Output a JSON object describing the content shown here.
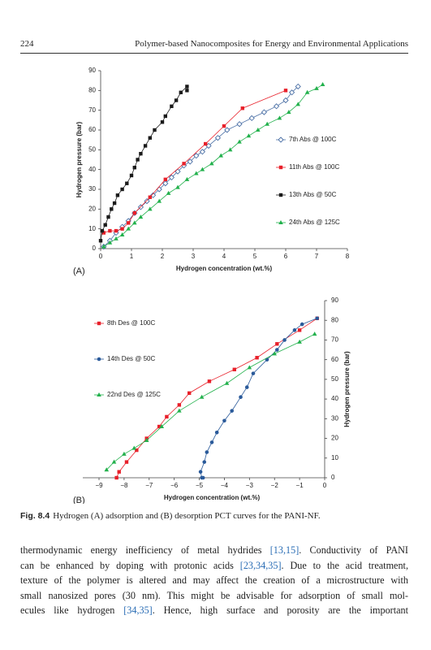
{
  "header": {
    "page_number": "224",
    "title": "Polymer-based Nanocomposites for Energy and Environmental Applications"
  },
  "chart_data": [
    {
      "type": "scatter",
      "lines": true,
      "panel_label": "(A)",
      "x_label": "Hydrogen concentration (wt.%)",
      "y_label": "Hydrogen pressure (bar)",
      "xlim": [
        0,
        8
      ],
      "ylim": [
        0,
        90
      ],
      "xticks": [
        0,
        1,
        2,
        3,
        4,
        5,
        6,
        7,
        8
      ],
      "yticks": [
        0,
        10,
        20,
        30,
        40,
        50,
        60,
        70,
        80,
        90
      ],
      "y_axis_side": "left",
      "legend_position": "center right",
      "series": [
        {
          "name": "7th Abs @ 100C",
          "color": "#4a6fa5",
          "marker": "diamond-open",
          "x": [
            0.1,
            0.3,
            0.5,
            0.7,
            0.9,
            1.1,
            1.3,
            1.5,
            1.7,
            1.9,
            2.1,
            2.3,
            2.5,
            2.7,
            2.9,
            3.1,
            3.3,
            3.5,
            3.8,
            4.1,
            4.5,
            4.9,
            5.3,
            5.7,
            6.0,
            6.2,
            6.4
          ],
          "values": [
            1,
            4,
            8,
            11,
            14,
            18,
            21,
            24,
            27,
            30,
            33,
            36,
            39,
            42,
            44,
            47,
            49,
            52,
            56,
            60,
            63,
            66,
            69,
            72,
            75,
            79,
            82
          ]
        },
        {
          "name": "11th Abs @ 100C",
          "color": "#e8202a",
          "marker": "square",
          "x": [
            0.1,
            0.3,
            0.5,
            0.7,
            0.9,
            1.1,
            1.6,
            2.1,
            2.7,
            3.4,
            4.0,
            4.6,
            6.0
          ],
          "values": [
            8,
            9,
            9,
            10,
            13,
            18,
            26,
            35,
            43,
            53,
            62,
            71,
            80
          ]
        },
        {
          "name": "13th Abs @ 50C",
          "color": "#1a1a1a",
          "marker": "square",
          "x": [
            0,
            0.05,
            0.15,
            0.25,
            0.35,
            0.45,
            0.55,
            0.7,
            0.85,
            1.0,
            1.1,
            1.2,
            1.3,
            1.45,
            1.6,
            1.75,
            2.0,
            2.1,
            2.3,
            2.45,
            2.6,
            2.8,
            2.8
          ],
          "values": [
            4,
            9,
            12,
            16,
            20,
            23,
            27,
            30,
            33,
            37,
            41,
            45,
            48,
            52,
            56,
            60,
            64,
            67,
            72,
            75,
            79,
            82,
            80
          ]
        },
        {
          "name": "24th Abs @ 125C",
          "color": "#22b14c",
          "marker": "triangle",
          "x": [
            0.1,
            0.3,
            0.5,
            0.7,
            0.9,
            1.1,
            1.3,
            1.6,
            1.9,
            2.2,
            2.5,
            2.8,
            3.1,
            3.3,
            3.6,
            3.9,
            4.2,
            4.5,
            4.8,
            5.1,
            5.4,
            5.8,
            6.1,
            6.4,
            6.7,
            7.0,
            7.2
          ],
          "values": [
            1,
            3,
            5,
            7,
            10,
            13,
            16,
            20,
            24,
            28,
            31,
            35,
            38,
            40,
            43,
            47,
            50,
            54,
            57,
            60,
            63,
            66,
            69,
            73,
            79,
            81,
            83
          ]
        }
      ]
    },
    {
      "type": "scatter",
      "lines": true,
      "panel_label": "(B)",
      "x_label": "Hydrogen concentration (wt.%)",
      "y_label": "Hydrogen pressure (bar)",
      "xlim": [
        -9,
        0
      ],
      "ylim": [
        0,
        90
      ],
      "xticks": [
        {
          "value": -9,
          "label": "−9"
        },
        {
          "value": -8,
          "label": "−8"
        },
        {
          "value": -7,
          "label": "−7"
        },
        {
          "value": -6,
          "label": "−6"
        },
        {
          "value": -5,
          "label": "−5"
        },
        {
          "value": -4,
          "label": "−4"
        },
        {
          "value": -3,
          "label": "−3"
        },
        {
          "value": -2,
          "label": "−2"
        },
        {
          "value": -1,
          "label": "−1"
        },
        0
      ],
      "yticks": [
        0,
        10,
        20,
        30,
        40,
        50,
        60,
        70,
        80,
        90
      ],
      "y_axis_side": "right",
      "legend_position": "upper left",
      "series": [
        {
          "name": "8th Des @ 100C",
          "color": "#e8202a",
          "marker": "square",
          "x": [
            -8.3,
            -8.2,
            -7.9,
            -7.5,
            -7.1,
            -6.6,
            -6.3,
            -5.8,
            -5.4,
            -4.6,
            -3.6,
            -2.7,
            -1.9,
            -1.0,
            -0.3
          ],
          "values": [
            0,
            3,
            8,
            14,
            20,
            26,
            31,
            37,
            43,
            49,
            55,
            61,
            68,
            75,
            81
          ]
        },
        {
          "name": "14th Des @ 50C",
          "color": "#2a5a9a",
          "marker": "circle",
          "x": [
            -4.85,
            -4.9,
            -4.95,
            -4.8,
            -4.7,
            -4.5,
            -4.3,
            -4.0,
            -3.7,
            -3.35,
            -3.1,
            -2.85,
            -2.3,
            -1.9,
            -1.6,
            -1.2,
            -0.9,
            -0.3
          ],
          "values": [
            0,
            0,
            3,
            8,
            13,
            18,
            23,
            29,
            34,
            41,
            46,
            53,
            60,
            65,
            70,
            75,
            78,
            81
          ]
        },
        {
          "name": "22nd Des @ 125C",
          "color": "#22b14c",
          "marker": "triangle",
          "x": [
            -8.7,
            -8.4,
            -8.0,
            -7.6,
            -7.1,
            -6.5,
            -5.8,
            -4.9,
            -3.9,
            -3.0,
            -2.0,
            -1.0,
            -0.4
          ],
          "values": [
            4,
            8,
            12,
            15,
            19,
            26,
            34,
            41,
            48,
            56,
            63,
            69,
            73
          ]
        }
      ]
    }
  ],
  "caption": {
    "label": "Fig. 8.4",
    "text": "Hydrogen (A) adsorption and (B) desorption PCT curves for the PANI-NF."
  },
  "body": {
    "lines": [
      [
        "thermodynamic energy inefficiency of metal hydrides ",
        {
          "ref": "[13,15]"
        },
        ". Conductivity of PANI"
      ],
      [
        "can be enhanced by doping with protonic acids ",
        {
          "ref": "[23,34,35]"
        },
        ". Due to the acid treatment,"
      ],
      [
        "texture of the polymer is altered and may affect the creation of a microstructure with"
      ],
      [
        "small nanosized pores (30 nm). This might be advisable for adsorption of small mol-"
      ],
      [
        "ecules like hydrogen ",
        {
          "ref": "[34,35]"
        },
        ". Hence, high surface and porosity are the important"
      ]
    ]
  }
}
